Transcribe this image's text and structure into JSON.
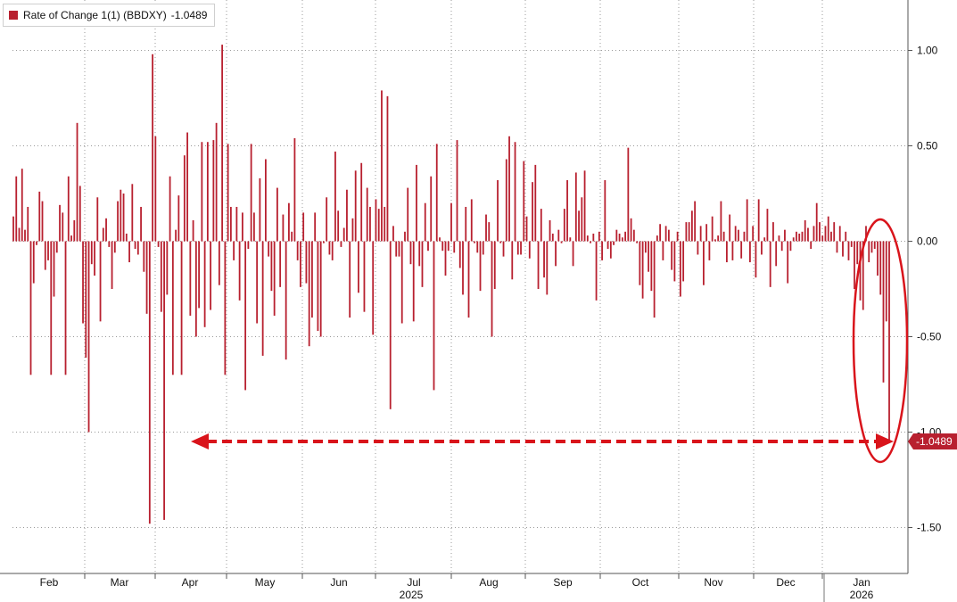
{
  "legend": {
    "label": "Rate of Change 1(1) (BBDXY)",
    "value": "-1.0489",
    "color": "#b8202f"
  },
  "last_value_label": "-1.0489",
  "colors": {
    "bar": "#b8202f",
    "annotation": "#d9141b",
    "grid": "#9a9a9a"
  },
  "chart_data": {
    "type": "bar",
    "title": "Rate of Change 1(1) (BBDXY)",
    "ylim": [
      -1.75,
      1.15
    ],
    "grid": true,
    "y_axis_side": "right",
    "y_ticks": [
      "1.00",
      "0.50",
      "0.00",
      "-0.50",
      "-1.00",
      "-1.50"
    ],
    "y_tick_values": [
      1.0,
      0.5,
      0.0,
      -0.5,
      -1.0,
      -1.5
    ],
    "x_month_labels": [
      "Feb",
      "Mar",
      "Apr",
      "May",
      "Jun",
      "Jul",
      "Aug",
      "Sep",
      "Oct",
      "Nov",
      "Dec",
      "Jan"
    ],
    "x_year_labels": [
      "2025",
      "2026"
    ],
    "x_range": [
      "2025-01-02",
      "2026-01-24"
    ],
    "series": [
      {
        "values": [
          [
            0,
            0.13
          ],
          [
            1,
            0.34
          ],
          [
            2,
            0.07
          ],
          [
            3,
            0.38
          ],
          [
            4,
            0.06
          ],
          [
            5,
            0.18
          ],
          [
            6,
            -0.7
          ],
          [
            7,
            -0.22
          ],
          [
            8,
            -0.02
          ],
          [
            9,
            0.26
          ],
          [
            10,
            0.21
          ],
          [
            11,
            -0.15
          ],
          [
            12,
            -0.1
          ],
          [
            13,
            -0.7
          ],
          [
            14,
            -0.29
          ],
          [
            15,
            -0.06
          ],
          [
            16,
            0.19
          ],
          [
            17,
            0.15
          ],
          [
            18,
            -0.7
          ],
          [
            19,
            0.34
          ],
          [
            20,
            0.03
          ],
          [
            21,
            0.11
          ],
          [
            22,
            0.62
          ],
          [
            23,
            0.29
          ],
          [
            24,
            -0.43
          ],
          [
            25,
            -0.61
          ],
          [
            26,
            -1.0
          ],
          [
            27,
            -0.12
          ],
          [
            28,
            -0.18
          ],
          [
            29,
            0.23
          ],
          [
            30,
            -0.42
          ],
          [
            31,
            0.07
          ],
          [
            32,
            0.12
          ],
          [
            33,
            -0.03
          ],
          [
            34,
            -0.25
          ],
          [
            35,
            -0.06
          ],
          [
            36,
            0.21
          ],
          [
            37,
            0.27
          ],
          [
            38,
            0.25
          ],
          [
            39,
            0.04
          ],
          [
            40,
            -0.11
          ],
          [
            41,
            0.3
          ],
          [
            42,
            -0.04
          ],
          [
            43,
            -0.07
          ],
          [
            44,
            0.18
          ],
          [
            45,
            -0.16
          ],
          [
            46,
            -0.38
          ],
          [
            47,
            -1.48
          ],
          [
            48,
            0.98
          ],
          [
            49,
            0.55
          ],
          [
            50,
            -0.03
          ],
          [
            51,
            -0.37
          ],
          [
            52,
            -1.46
          ],
          [
            53,
            -0.28
          ],
          [
            54,
            0.34
          ],
          [
            55,
            -0.7
          ],
          [
            56,
            0.06
          ],
          [
            57,
            0.24
          ],
          [
            58,
            -0.7
          ],
          [
            59,
            0.45
          ],
          [
            60,
            0.57
          ],
          [
            61,
            -0.39
          ],
          [
            62,
            0.11
          ],
          [
            63,
            -0.5
          ],
          [
            64,
            -0.35
          ],
          [
            65,
            0.52
          ],
          [
            66,
            -0.45
          ],
          [
            67,
            0.52
          ],
          [
            68,
            -0.36
          ],
          [
            69,
            0.53
          ],
          [
            70,
            0.62
          ],
          [
            71,
            -0.23
          ],
          [
            72,
            1.03
          ],
          [
            73,
            -0.7
          ],
          [
            74,
            0.51
          ],
          [
            75,
            0.18
          ],
          [
            76,
            -0.1
          ],
          [
            77,
            0.18
          ],
          [
            78,
            -0.31
          ],
          [
            79,
            0.15
          ],
          [
            80,
            -0.78
          ],
          [
            81,
            -0.04
          ],
          [
            82,
            0.51
          ],
          [
            83,
            0.15
          ],
          [
            84,
            -0.43
          ],
          [
            85,
            0.33
          ],
          [
            86,
            -0.6
          ],
          [
            87,
            0.43
          ],
          [
            88,
            -0.08
          ],
          [
            89,
            -0.26
          ],
          [
            90,
            -0.39
          ],
          [
            91,
            0.28
          ],
          [
            92,
            -0.24
          ],
          [
            93,
            0.14
          ],
          [
            94,
            -0.62
          ],
          [
            95,
            0.2
          ],
          [
            96,
            0.05
          ],
          [
            97,
            0.54
          ],
          [
            98,
            -0.1
          ],
          [
            99,
            -0.24
          ],
          [
            100,
            0.15
          ],
          [
            101,
            -0.22
          ],
          [
            102,
            -0.55
          ],
          [
            103,
            -0.4
          ],
          [
            104,
            0.15
          ],
          [
            105,
            -0.47
          ],
          [
            106,
            -0.5
          ],
          [
            107,
            -0.01
          ],
          [
            108,
            0.23
          ],
          [
            109,
            -0.07
          ],
          [
            110,
            -0.1
          ],
          [
            111,
            0.47
          ],
          [
            112,
            0.16
          ],
          [
            113,
            -0.03
          ],
          [
            114,
            0.07
          ],
          [
            115,
            0.27
          ],
          [
            116,
            -0.4
          ],
          [
            117,
            0.12
          ],
          [
            118,
            0.37
          ],
          [
            119,
            -0.27
          ],
          [
            120,
            0.41
          ],
          [
            121,
            -0.37
          ],
          [
            122,
            0.28
          ],
          [
            123,
            0.18
          ],
          [
            124,
            -0.49
          ],
          [
            125,
            0.22
          ],
          [
            126,
            0.17
          ],
          [
            127,
            0.79
          ],
          [
            128,
            0.18
          ],
          [
            129,
            0.76
          ],
          [
            130,
            -0.88
          ],
          [
            131,
            0.08
          ],
          [
            132,
            -0.08
          ],
          [
            133,
            -0.08
          ],
          [
            134,
            -0.43
          ],
          [
            135,
            0.05
          ],
          [
            136,
            0.28
          ],
          [
            137,
            -0.12
          ],
          [
            138,
            -0.42
          ],
          [
            139,
            0.4
          ],
          [
            140,
            -0.13
          ],
          [
            141,
            -0.24
          ],
          [
            142,
            0.2
          ],
          [
            143,
            -0.05
          ],
          [
            144,
            0.34
          ],
          [
            145,
            -0.78
          ],
          [
            146,
            0.51
          ],
          [
            147,
            0.02
          ],
          [
            148,
            -0.05
          ],
          [
            149,
            -0.18
          ],
          [
            150,
            -0.05
          ],
          [
            151,
            0.2
          ],
          [
            152,
            -0.06
          ],
          [
            153,
            0.53
          ],
          [
            154,
            -0.14
          ],
          [
            155,
            -0.28
          ],
          [
            156,
            0.18
          ],
          [
            157,
            -0.4
          ],
          [
            158,
            0.22
          ],
          [
            159,
            -0.01
          ],
          [
            160,
            -0.06
          ],
          [
            161,
            -0.26
          ],
          [
            162,
            -0.07
          ],
          [
            163,
            0.14
          ],
          [
            164,
            0.1
          ],
          [
            165,
            -0.5
          ],
          [
            166,
            -0.25
          ],
          [
            167,
            0.32
          ],
          [
            168,
            -0.01
          ],
          [
            169,
            -0.08
          ],
          [
            170,
            0.43
          ],
          [
            171,
            0.55
          ],
          [
            172,
            -0.2
          ],
          [
            173,
            0.52
          ],
          [
            174,
            -0.07
          ],
          [
            175,
            -0.07
          ],
          [
            176,
            0.42
          ],
          [
            177,
            0.13
          ],
          [
            178,
            -0.09
          ],
          [
            179,
            0.31
          ],
          [
            180,
            0.4
          ],
          [
            181,
            -0.25
          ],
          [
            182,
            0.17
          ],
          [
            183,
            -0.19
          ],
          [
            184,
            -0.28
          ],
          [
            185,
            0.11
          ],
          [
            186,
            0.04
          ],
          [
            187,
            -0.13
          ],
          [
            188,
            0.06
          ],
          [
            189,
            -0.01
          ],
          [
            190,
            0.17
          ],
          [
            191,
            0.32
          ],
          [
            192,
            0.02
          ],
          [
            193,
            -0.13
          ],
          [
            194,
            0.36
          ],
          [
            195,
            0.16
          ],
          [
            196,
            0.23
          ],
          [
            197,
            0.37
          ],
          [
            198,
            0.03
          ],
          [
            199,
            -0.01
          ],
          [
            200,
            0.04
          ],
          [
            201,
            -0.31
          ],
          [
            202,
            0.05
          ],
          [
            203,
            -0.1
          ],
          [
            204,
            0.32
          ],
          [
            205,
            -0.04
          ],
          [
            206,
            -0.09
          ],
          [
            207,
            -0.02
          ],
          [
            208,
            0.06
          ],
          [
            209,
            0.04
          ],
          [
            210,
            0.02
          ],
          [
            211,
            0.05
          ],
          [
            212,
            0.49
          ],
          [
            213,
            0.12
          ],
          [
            214,
            0.06
          ],
          [
            215,
            -0.01
          ],
          [
            216,
            -0.23
          ],
          [
            217,
            -0.3
          ],
          [
            218,
            -0.06
          ],
          [
            219,
            -0.16
          ],
          [
            220,
            -0.26
          ],
          [
            221,
            -0.4
          ],
          [
            222,
            0.03
          ],
          [
            223,
            0.09
          ],
          [
            224,
            -0.1
          ],
          [
            225,
            0.08
          ],
          [
            226,
            0.06
          ],
          [
            227,
            -0.15
          ],
          [
            228,
            -0.21
          ],
          [
            229,
            0.05
          ],
          [
            230,
            -0.29
          ],
          [
            231,
            -0.21
          ],
          [
            232,
            0.1
          ],
          [
            233,
            0.1
          ],
          [
            234,
            0.16
          ],
          [
            235,
            0.21
          ],
          [
            236,
            -0.07
          ],
          [
            237,
            0.08
          ],
          [
            238,
            -0.23
          ],
          [
            239,
            0.09
          ],
          [
            240,
            -0.1
          ],
          [
            241,
            0.13
          ],
          [
            242,
            0.01
          ],
          [
            243,
            0.03
          ],
          [
            244,
            0.21
          ],
          [
            245,
            0.05
          ],
          [
            246,
            -0.11
          ],
          [
            247,
            0.14
          ],
          [
            248,
            -0.1
          ],
          [
            249,
            0.08
          ],
          [
            250,
            0.06
          ],
          [
            251,
            -0.09
          ],
          [
            252,
            0.05
          ],
          [
            253,
            0.22
          ],
          [
            254,
            -0.11
          ],
          [
            255,
            0.08
          ],
          [
            256,
            -0.19
          ],
          [
            257,
            0.22
          ],
          [
            258,
            -0.07
          ],
          [
            259,
            0.02
          ],
          [
            260,
            0.17
          ],
          [
            261,
            -0.24
          ],
          [
            262,
            0.1
          ],
          [
            263,
            -0.13
          ],
          [
            264,
            0.03
          ],
          [
            265,
            -0.05
          ],
          [
            266,
            0.06
          ],
          [
            267,
            -0.22
          ],
          [
            268,
            -0.05
          ],
          [
            269,
            0.02
          ],
          [
            270,
            0.05
          ],
          [
            271,
            0.04
          ],
          [
            272,
            0.05
          ],
          [
            273,
            0.11
          ],
          [
            274,
            0.07
          ],
          [
            275,
            -0.04
          ],
          [
            276,
            0.08
          ],
          [
            277,
            0.2
          ],
          [
            278,
            0.1
          ],
          [
            279,
            0.03
          ],
          [
            280,
            0.08
          ],
          [
            281,
            0.13
          ],
          [
            282,
            0.05
          ],
          [
            283,
            0.1
          ],
          [
            284,
            -0.06
          ],
          [
            285,
            0.08
          ],
          [
            286,
            -0.08
          ],
          [
            287,
            0.05
          ],
          [
            288,
            -0.1
          ],
          [
            289,
            -0.03
          ],
          [
            290,
            -0.25
          ],
          [
            291,
            -0.12
          ],
          [
            292,
            -0.31
          ],
          [
            293,
            -0.36
          ],
          [
            294,
            0.08
          ],
          [
            295,
            -0.11
          ],
          [
            296,
            -0.06
          ],
          [
            297,
            -0.04
          ],
          [
            298,
            -0.18
          ],
          [
            299,
            -0.28
          ],
          [
            300,
            -0.74
          ],
          [
            301,
            -0.42
          ],
          [
            302,
            -1.0489
          ]
        ]
      }
    ]
  }
}
